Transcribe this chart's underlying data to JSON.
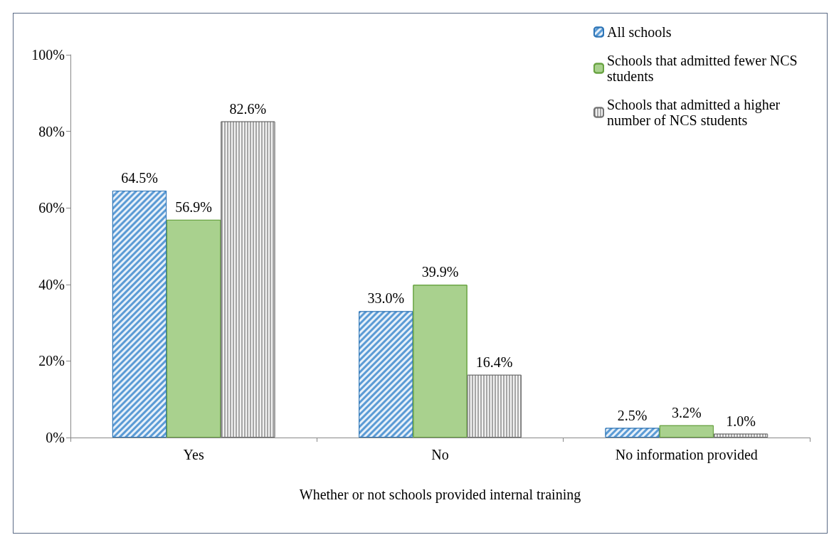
{
  "chart_data": {
    "type": "bar",
    "xlabel": "Whether or not schools provided internal training",
    "categories": [
      "Yes",
      "No",
      "No information provided"
    ],
    "series": [
      {
        "name": "All schools",
        "color": "#5b9bd5",
        "values": [
          64.5,
          33.0,
          2.5
        ],
        "value_labels": [
          "64.5%",
          "33.0%",
          "2.5%"
        ]
      },
      {
        "name": "Schools that admitted fewer NCS students",
        "color": "#a9d18e",
        "values": [
          56.9,
          39.9,
          3.2
        ],
        "value_labels": [
          "56.9%",
          "39.9%",
          "3.2%"
        ]
      },
      {
        "name": "Schools that admitted a higher number of NCS students",
        "color": "#a6a6a6",
        "values": [
          82.6,
          16.4,
          1.0
        ],
        "value_labels": [
          "82.6%",
          "16.4%",
          "1.0%"
        ]
      }
    ],
    "ylim": [
      0,
      100
    ],
    "yticks": [
      {
        "value": 0,
        "label": "0%"
      },
      {
        "value": 20,
        "label": "20%"
      },
      {
        "value": 40,
        "label": "40%"
      },
      {
        "value": 60,
        "label": "60%"
      },
      {
        "value": 80,
        "label": "80%"
      },
      {
        "value": 100,
        "label": "100%"
      }
    ],
    "grid": false,
    "legend": "top right"
  }
}
